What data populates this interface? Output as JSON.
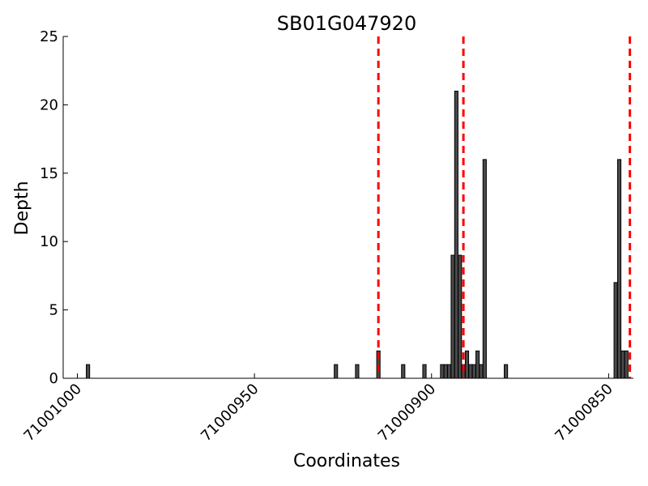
{
  "chart_data": {
    "type": "bar",
    "title": "SB01G047920",
    "xlabel": "Coordinates",
    "ylabel": "Depth",
    "x_reversed": true,
    "xlim": [
      71001004,
      71000843
    ],
    "ylim": [
      0,
      25
    ],
    "x_ticks": [
      {
        "value": 71001000,
        "label": "71001000"
      },
      {
        "value": 71000950,
        "label": "71000950"
      },
      {
        "value": 71000900,
        "label": "71000900"
      },
      {
        "value": 71000850,
        "label": "71000850"
      }
    ],
    "y_ticks": [
      {
        "value": 0,
        "label": "0"
      },
      {
        "value": 5,
        "label": "5"
      },
      {
        "value": 10,
        "label": "10"
      },
      {
        "value": 15,
        "label": "15"
      },
      {
        "value": 20,
        "label": "20"
      },
      {
        "value": 25,
        "label": "25"
      }
    ],
    "bars": [
      {
        "x": 71000997,
        "value": 1
      },
      {
        "x": 71000927,
        "value": 1
      },
      {
        "x": 71000921,
        "value": 1
      },
      {
        "x": 71000915,
        "value": 2
      },
      {
        "x": 71000908,
        "value": 1
      },
      {
        "x": 71000902,
        "value": 1
      },
      {
        "x": 71000897,
        "value": 1
      },
      {
        "x": 71000896,
        "value": 1
      },
      {
        "x": 71000895,
        "value": 1
      },
      {
        "x": 71000894,
        "value": 9
      },
      {
        "x": 71000893,
        "value": 21
      },
      {
        "x": 71000892,
        "value": 9
      },
      {
        "x": 71000891,
        "value": 1
      },
      {
        "x": 71000890,
        "value": 2
      },
      {
        "x": 71000889,
        "value": 1
      },
      {
        "x": 71000888,
        "value": 1
      },
      {
        "x": 71000887,
        "value": 2
      },
      {
        "x": 71000886,
        "value": 1
      },
      {
        "x": 71000885,
        "value": 16
      },
      {
        "x": 71000879,
        "value": 1
      },
      {
        "x": 71000848,
        "value": 7
      },
      {
        "x": 71000847,
        "value": 16
      },
      {
        "x": 71000846,
        "value": 2
      },
      {
        "x": 71000845,
        "value": 2
      }
    ],
    "vlines": [
      71000915,
      71000891,
      71000844
    ],
    "colors": {
      "bar_fill": "#4a4a4a",
      "bar_edge": "#000000",
      "vline": "#ff0000"
    }
  }
}
